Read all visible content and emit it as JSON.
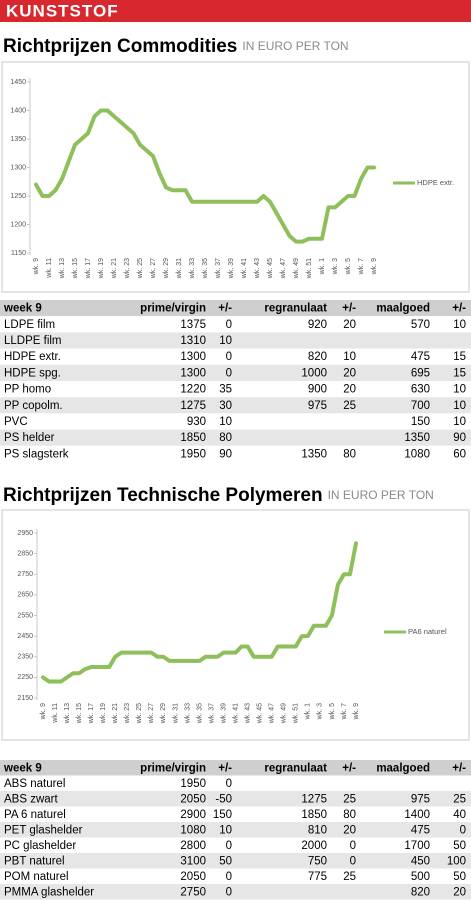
{
  "header": {
    "title": "KUNSTSTOF"
  },
  "chart_data": [
    {
      "type": "line",
      "title": "Richtprijzen Commodities",
      "subtitle": "IN EURO PER TON",
      "categories": [
        "wk. 9",
        null,
        "wk. 11",
        null,
        "wk. 13",
        null,
        "wk. 15",
        null,
        "wk. 17",
        null,
        "wk. 19",
        null,
        "wk. 21",
        null,
        "wk. 23",
        null,
        "wk. 25",
        null,
        "wk. 27",
        null,
        "wk. 29",
        null,
        "wk. 31",
        null,
        "wk. 33",
        null,
        "wk. 35",
        null,
        "wk. 37",
        null,
        "wk. 39",
        null,
        "wk. 41",
        null,
        "wk. 43",
        null,
        "wk. 45",
        null,
        "wk. 47",
        null,
        "wk. 49",
        null,
        "wk. 51",
        null,
        "wk. 1",
        null,
        "wk. 3",
        null,
        "wk. 5",
        null,
        "wk. 7",
        null,
        "wk. 9"
      ],
      "series": [
        {
          "name": "HDPE extr.",
          "color": "#8dbf5a",
          "values": [
            1270,
            1250,
            1250,
            1260,
            1280,
            1310,
            1340,
            1350,
            1360,
            1390,
            1400,
            1400,
            1390,
            1380,
            1370,
            1360,
            1340,
            1330,
            1320,
            1290,
            1265,
            1260,
            1260,
            1260,
            1240,
            1240,
            1240,
            1240,
            1240,
            1240,
            1240,
            1240,
            1240,
            1240,
            1240,
            1250,
            1240,
            1220,
            1200,
            1180,
            1170,
            1170,
            1175,
            1175,
            1175,
            1230,
            1230,
            1240,
            1250,
            1250,
            1280,
            1300,
            1300
          ]
        }
      ],
      "ylim": [
        1150,
        1450
      ],
      "yticks": [
        1150,
        1200,
        1250,
        1300,
        1350,
        1400,
        1450
      ],
      "legend": "right"
    },
    {
      "type": "line",
      "title": "Richtprijzen Technische Polymeren",
      "subtitle": "IN EURO PER TON",
      "categories": [
        "wk. 9",
        null,
        "wk. 11",
        null,
        "wk. 13",
        null,
        "wk. 15",
        null,
        "wk. 17",
        null,
        "wk. 19",
        null,
        "wk. 21",
        null,
        "wk. 23",
        null,
        "wk. 25",
        null,
        "wk. 27",
        null,
        "wk. 29",
        null,
        "wk. 31",
        null,
        "wk. 33",
        null,
        "wk. 35",
        null,
        "wk. 37",
        null,
        "wk. 39",
        null,
        "wk. 41",
        null,
        "wk. 43",
        null,
        "wk. 45",
        null,
        "wk. 47",
        null,
        "wk. 49",
        null,
        "wk. 51",
        null,
        "wk. 1",
        null,
        "wk. 3",
        null,
        "wk. 5",
        null,
        "wk. 7",
        null,
        "wk. 9"
      ],
      "series": [
        {
          "name": "PA6 naturel",
          "color": "#8dbf5a",
          "values": [
            2250,
            2230,
            2230,
            2230,
            2250,
            2270,
            2270,
            2290,
            2300,
            2300,
            2300,
            2300,
            2350,
            2370,
            2370,
            2370,
            2370,
            2370,
            2370,
            2350,
            2350,
            2330,
            2330,
            2330,
            2330,
            2330,
            2330,
            2350,
            2350,
            2350,
            2370,
            2370,
            2370,
            2400,
            2400,
            2350,
            2350,
            2350,
            2350,
            2400,
            2400,
            2400,
            2400,
            2450,
            2450,
            2500,
            2500,
            2500,
            2550,
            2700,
            2750,
            2750,
            2900
          ]
        }
      ],
      "ylim": [
        2150,
        2950
      ],
      "yticks": [
        2150,
        2250,
        2350,
        2450,
        2550,
        2650,
        2750,
        2850,
        2950
      ],
      "legend": "right"
    }
  ],
  "tables": [
    {
      "header": [
        "week 9",
        "prime/virgin",
        "+/-",
        "regranulaat",
        "+/-",
        "maalgoed",
        "+/-"
      ],
      "rows": [
        [
          "LDPE film",
          "1375",
          "0",
          "920",
          "20",
          "570",
          "10"
        ],
        [
          "LLDPE film",
          "1310",
          "10",
          null,
          null,
          null,
          null
        ],
        [
          "HDPE extr.",
          "1300",
          "0",
          "820",
          "10",
          "475",
          "15"
        ],
        [
          "HDPE spg.",
          "1300",
          "0",
          "1000",
          "20",
          "695",
          "15"
        ],
        [
          "PP homo",
          "1220",
          "35",
          "900",
          "20",
          "630",
          "10"
        ],
        [
          "PP copolm.",
          "1275",
          "30",
          "975",
          "25",
          "700",
          "10"
        ],
        [
          "PVC",
          "930",
          "10",
          null,
          null,
          "150",
          "10"
        ],
        [
          "PS helder",
          "1850",
          "80",
          null,
          null,
          "1350",
          "90"
        ],
        [
          "PS slagsterk",
          "1950",
          "90",
          "1350",
          "80",
          "1080",
          "60"
        ]
      ]
    },
    {
      "header": [
        "week 9",
        "prime/virgin",
        "+/-",
        "regranulaat",
        "+/-",
        "maalgoed",
        "+/-"
      ],
      "rows": [
        [
          "ABS naturel",
          "1950",
          "0",
          null,
          null,
          null,
          null
        ],
        [
          "ABS zwart",
          "2050",
          "-50",
          "1275",
          "25",
          "975",
          "25"
        ],
        [
          "PA 6 naturel",
          "2900",
          "150",
          "1850",
          "80",
          "1400",
          "40"
        ],
        [
          "PET glashelder",
          "1080",
          "10",
          "810",
          "20",
          "475",
          "0"
        ],
        [
          "PC glashelder",
          "2800",
          "0",
          "2000",
          "0",
          "1700",
          "50"
        ],
        [
          "PBT naturel",
          "3100",
          "50",
          "750",
          "0",
          "450",
          "100"
        ],
        [
          "POM naturel",
          "2050",
          "0",
          "775",
          "25",
          "500",
          "50"
        ],
        [
          "PMMA glashelder",
          "2750",
          "0",
          null,
          null,
          "820",
          "20"
        ]
      ]
    }
  ]
}
